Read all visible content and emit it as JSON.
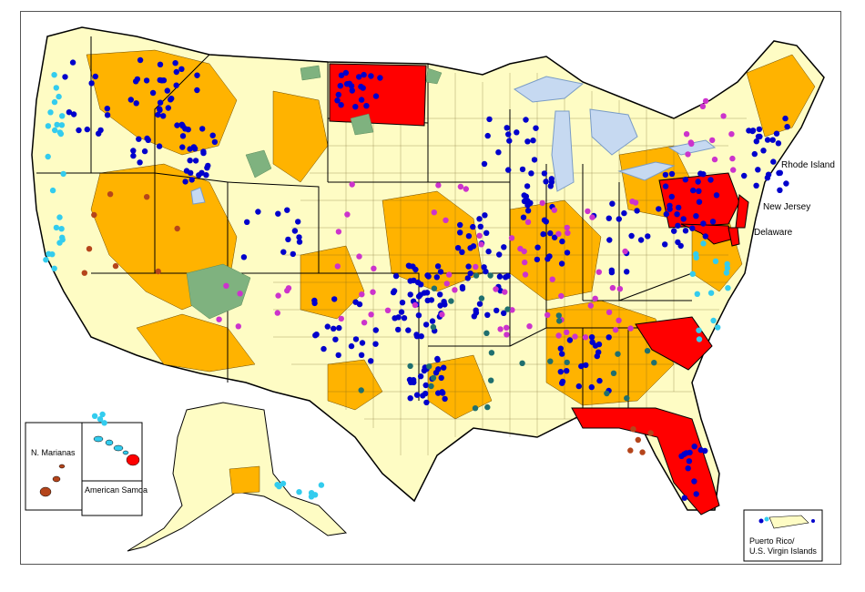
{
  "labels": {
    "rhode_island": "Rhode Island",
    "new_jersey": "New Jersey",
    "delaware": "Delaware",
    "n_marianas": "N. Marianas",
    "american_samoa": "American Samoa",
    "puerto_rico_line1": "Puerto Rico/",
    "puerto_rico_line2": "U.S. Virgin Islands"
  },
  "colors": {
    "land_light": "#fefcc4",
    "land_orange": "#ffb300",
    "full_state": "#ff0000",
    "tribal": "#7fb27f",
    "water": "#c6d9f1",
    "site_blue": "#0000cc",
    "site_magenta": "#cc33cc",
    "site_cyan": "#33ccee",
    "site_teal": "#1f6f6f",
    "site_brown": "#b5451b",
    "border": "#000000"
  },
  "highlighted_states": [
    "North Dakota",
    "Pennsylvania",
    "Maryland",
    "South Carolina",
    "Florida"
  ]
}
